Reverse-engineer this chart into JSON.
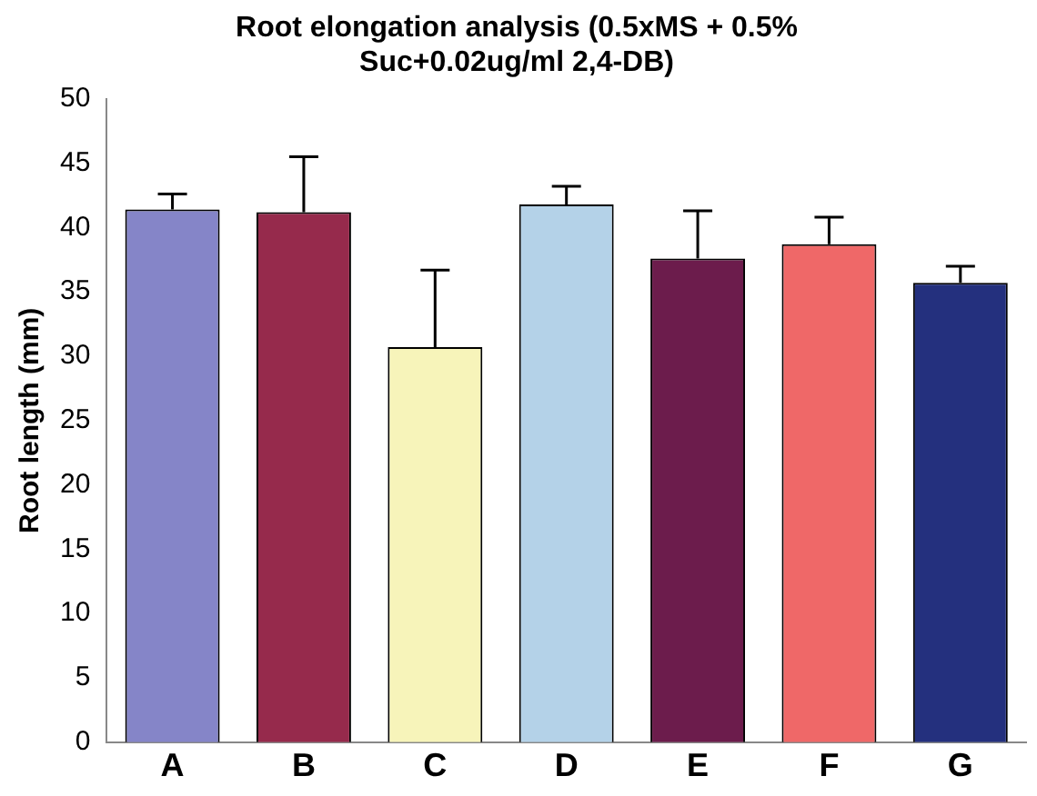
{
  "chart_data": {
    "type": "bar",
    "title": "Root elongation analysis (0.5xMS + 0.5%\nSuc+0.02ug/ml 2,4-DB)",
    "ylabel": "Root length (mm)",
    "categories": [
      "A",
      "B",
      "C",
      "D",
      "E",
      "F",
      "G"
    ],
    "values": [
      41.4,
      41.2,
      30.7,
      41.8,
      37.6,
      38.7,
      35.7
    ],
    "errors": [
      [
        41.4,
        42.6
      ],
      [
        41.2,
        45.5
      ],
      [
        30.7,
        36.7
      ],
      [
        41.8,
        43.2
      ],
      [
        37.6,
        41.3
      ],
      [
        38.7,
        40.8
      ],
      [
        35.7,
        37.0
      ]
    ],
    "colors": [
      "#8585c8",
      "#962a4c",
      "#f7f4ba",
      "#b4d2e8",
      "#6c1c4c",
      "#ef6868",
      "#24307e"
    ],
    "ylim": [
      0,
      50
    ],
    "yticks": [
      0,
      5,
      10,
      15,
      20,
      25,
      30,
      35,
      40,
      45,
      50
    ],
    "grid": false,
    "legend": false
  }
}
